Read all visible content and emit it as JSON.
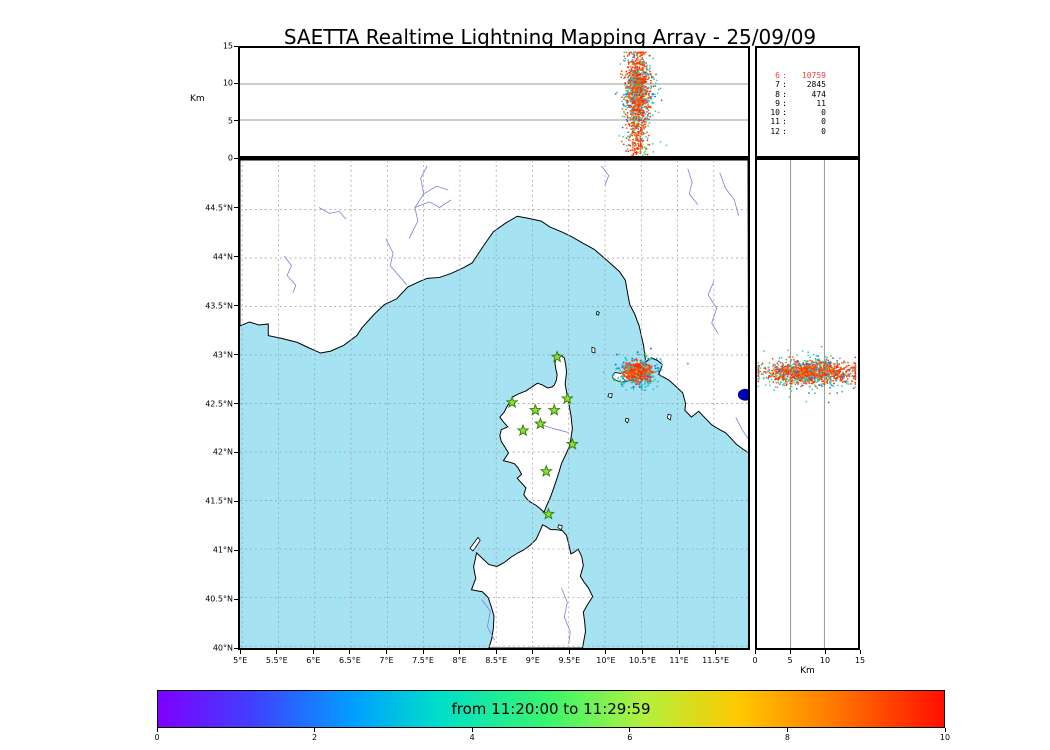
{
  "title": "SAETTA Realtime Lightning Mapping Array - 25/09/09",
  "chart_data": {
    "type": "scatter",
    "title": "SAETTA Realtime Lightning Mapping Array - 25/09/09",
    "panels": [
      {
        "id": "altitude-vs-longitude",
        "ylabel": "Km",
        "xlim": [
          4.97,
          11.97
        ],
        "ylim": [
          0,
          15
        ],
        "yticks": [
          0,
          5,
          10,
          15
        ],
        "ygrid": [
          5,
          10
        ]
      },
      {
        "id": "map",
        "xlim": [
          4.97,
          11.97
        ],
        "ylim": [
          39.98,
          45.01
        ],
        "xticks": [
          5,
          5.5,
          6,
          6.5,
          7,
          7.5,
          8,
          8.5,
          9,
          9.5,
          10,
          10.5,
          11,
          11.5
        ],
        "xtick_labels": [
          "5°E",
          "5.5°E",
          "6°E",
          "6.5°E",
          "7°E",
          "7.5°E",
          "8°E",
          "8.5°E",
          "9°E",
          "9.5°E",
          "10°E",
          "10.5°E",
          "11°E",
          "11.5°E"
        ],
        "yticks": [
          40,
          40.5,
          41,
          41.5,
          42,
          42.5,
          43,
          43.5,
          44,
          44.5
        ],
        "ytick_labels": [
          "40°N",
          "40.5°N",
          "41°N",
          "41.5°N",
          "42°N",
          "42.5°N",
          "43°N",
          "43.5°N",
          "44°N",
          "44.5°N"
        ],
        "grid_style": "dashed"
      },
      {
        "id": "altitude-vs-latitude",
        "xlabel": "Km",
        "xlim": [
          0,
          15
        ],
        "ylim": [
          39.98,
          45.01
        ],
        "xticks": [
          0,
          5,
          10,
          15
        ],
        "xgrid": [
          5,
          10
        ]
      }
    ],
    "stations": [
      [
        9.34,
        42.98
      ],
      [
        8.72,
        42.51
      ],
      [
        9.04,
        42.43
      ],
      [
        9.3,
        42.43
      ],
      [
        9.48,
        42.55
      ],
      [
        8.87,
        42.22
      ],
      [
        9.11,
        42.29
      ],
      [
        9.55,
        42.08
      ],
      [
        9.19,
        41.8
      ],
      [
        9.22,
        41.36
      ]
    ],
    "clusters": {
      "palette": [
        {
          "c": "#ff2d00",
          "w": 0.3
        },
        {
          "c": "#ff4f00",
          "w": 0.22
        },
        {
          "c": "#ff7518",
          "w": 0.14
        },
        {
          "c": "#2fd3c4",
          "w": 0.16
        },
        {
          "c": "#1fb9d8",
          "w": 0.06
        },
        {
          "c": "#47d24f",
          "w": 0.05
        },
        {
          "c": "#3566e8",
          "w": 0.07
        }
      ],
      "cool_from": 3,
      "map": {
        "lon": 10.45,
        "lat": 42.82,
        "slon": 0.085,
        "slat": 0.045,
        "n": 800,
        "cool_spread": 1.9,
        "seed": 42
      },
      "alt_lon": {
        "lon": 10.45,
        "slon": 0.075,
        "alt_mean": 9.2,
        "alt_sigma": 2.6,
        "alt_min": 0.1,
        "alt_max": 14.4,
        "tail_frac": 0.15,
        "n": 1400,
        "cool_spread": 1.5,
        "seed": 7
      },
      "alt_lat": {
        "lat": 42.82,
        "slat": 0.055,
        "alt_mean": 8.0,
        "alt_sigma": 3.4,
        "alt_min": 0.2,
        "alt_max": 14.6,
        "n": 1400,
        "cool_spread": 1.5,
        "seed": 13
      }
    },
    "source_counts": {
      "rows": [
        {
          "k": "6",
          "v": "10759",
          "red": true
        },
        {
          "k": "7",
          "v": "2845",
          "red": false
        },
        {
          "k": "8",
          "v": "474",
          "red": false
        },
        {
          "k": "9",
          "v": "11",
          "red": false
        },
        {
          "k": "10",
          "v": "0",
          "red": false
        },
        {
          "k": "11",
          "v": "0",
          "red": false
        },
        {
          "k": "12",
          "v": "0",
          "red": false
        }
      ]
    },
    "colorbar": {
      "label": "from 11:20:00 to 11:29:59",
      "range": [
        0,
        10
      ],
      "ticks": [
        0,
        2,
        4,
        6,
        8,
        10
      ],
      "stops": [
        {
          "c": "#8000ff",
          "p": 0
        },
        {
          "c": "#4040ff",
          "p": 12
        },
        {
          "c": "#00a0ff",
          "p": 25
        },
        {
          "c": "#00e0c8",
          "p": 36
        },
        {
          "c": "#3cf56c",
          "p": 50
        },
        {
          "c": "#b4f03c",
          "p": 62
        },
        {
          "c": "#ffc800",
          "p": 74
        },
        {
          "c": "#ff7800",
          "p": 86
        },
        {
          "c": "#ff0f00",
          "p": 100
        }
      ]
    }
  },
  "colors": {
    "sea": "#a6e3f2",
    "land": "#ffffff",
    "coast": "#000000",
    "river": "#7d7de0",
    "lake": "#0000b0",
    "grid": "#999999",
    "panel_grid": "#777777",
    "station_fill": "#8be32c",
    "station_edge": "#3a7d12",
    "stats_highlight": "#f43b3b"
  },
  "map_geo": {
    "mainland": [
      [
        4.97,
        43.3
      ],
      [
        5.1,
        43.34
      ],
      [
        5.23,
        43.31
      ],
      [
        5.36,
        43.32
      ],
      [
        5.36,
        43.2
      ],
      [
        5.55,
        43.17
      ],
      [
        5.76,
        43.13
      ],
      [
        5.93,
        43.07
      ],
      [
        6.08,
        43.02
      ],
      [
        6.22,
        43.04
      ],
      [
        6.4,
        43.1
      ],
      [
        6.58,
        43.2
      ],
      [
        6.65,
        43.28
      ],
      [
        6.82,
        43.42
      ],
      [
        6.96,
        43.52
      ],
      [
        7.13,
        43.58
      ],
      [
        7.28,
        43.7
      ],
      [
        7.45,
        43.76
      ],
      [
        7.55,
        43.79
      ],
      [
        7.72,
        43.8
      ],
      [
        7.88,
        43.84
      ],
      [
        8.05,
        43.9
      ],
      [
        8.17,
        43.95
      ],
      [
        8.32,
        44.12
      ],
      [
        8.46,
        44.27
      ],
      [
        8.63,
        44.36
      ],
      [
        8.79,
        44.43
      ],
      [
        8.94,
        44.41
      ],
      [
        9.12,
        44.38
      ],
      [
        9.24,
        44.32
      ],
      [
        9.4,
        44.27
      ],
      [
        9.54,
        44.22
      ],
      [
        9.7,
        44.15
      ],
      [
        9.85,
        44.09
      ],
      [
        10.05,
        43.96
      ],
      [
        10.2,
        43.86
      ],
      [
        10.28,
        43.77
      ],
      [
        10.31,
        43.64
      ],
      [
        10.34,
        43.52
      ],
      [
        10.41,
        43.42
      ],
      [
        10.47,
        43.3
      ],
      [
        10.53,
        43.1
      ],
      [
        10.56,
        42.93
      ],
      [
        10.64,
        42.97
      ],
      [
        10.73,
        42.94
      ],
      [
        10.79,
        42.9
      ],
      [
        10.74,
        42.8
      ],
      [
        10.88,
        42.74
      ],
      [
        10.97,
        42.68
      ],
      [
        11.07,
        42.61
      ],
      [
        11.11,
        42.5
      ],
      [
        11.1,
        42.43
      ],
      [
        11.19,
        42.36
      ],
      [
        11.29,
        42.42
      ],
      [
        11.38,
        42.35
      ],
      [
        11.47,
        42.28
      ],
      [
        11.58,
        42.23
      ],
      [
        11.66,
        42.2
      ],
      [
        11.75,
        42.13
      ],
      [
        11.81,
        42.08
      ],
      [
        11.9,
        42.03
      ],
      [
        11.98,
        41.99
      ]
    ],
    "corsica": [
      [
        9.35,
        43.01
      ],
      [
        9.4,
        42.99
      ],
      [
        9.44,
        42.97
      ],
      [
        9.46,
        42.89
      ],
      [
        9.47,
        42.82
      ],
      [
        9.45,
        42.7
      ],
      [
        9.47,
        42.62
      ],
      [
        9.49,
        42.54
      ],
      [
        9.53,
        42.38
      ],
      [
        9.55,
        42.24
      ],
      [
        9.53,
        42.14
      ],
      [
        9.51,
        42.06
      ],
      [
        9.45,
        41.96
      ],
      [
        9.4,
        41.88
      ],
      [
        9.36,
        41.78
      ],
      [
        9.33,
        41.71
      ],
      [
        9.28,
        41.6
      ],
      [
        9.24,
        41.52
      ],
      [
        9.19,
        41.44
      ],
      [
        9.16,
        41.38
      ],
      [
        9.1,
        41.42
      ],
      [
        9.05,
        41.45
      ],
      [
        8.98,
        41.48
      ],
      [
        8.93,
        41.51
      ],
      [
        8.88,
        41.56
      ],
      [
        8.91,
        41.63
      ],
      [
        8.85,
        41.68
      ],
      [
        8.79,
        41.73
      ],
      [
        8.85,
        41.77
      ],
      [
        8.8,
        41.84
      ],
      [
        8.75,
        41.88
      ],
      [
        8.66,
        41.9
      ],
      [
        8.6,
        41.91
      ],
      [
        8.67,
        41.99
      ],
      [
        8.62,
        42.05
      ],
      [
        8.57,
        42.11
      ],
      [
        8.55,
        42.17
      ],
      [
        8.57,
        42.23
      ],
      [
        8.66,
        42.26
      ],
      [
        8.6,
        42.31
      ],
      [
        8.55,
        42.36
      ],
      [
        8.61,
        42.41
      ],
      [
        8.65,
        42.47
      ],
      [
        8.7,
        42.53
      ],
      [
        8.73,
        42.57
      ],
      [
        8.81,
        42.6
      ],
      [
        8.91,
        42.63
      ],
      [
        8.99,
        42.67
      ],
      [
        9.07,
        42.71
      ],
      [
        9.14,
        42.69
      ],
      [
        9.21,
        42.66
      ],
      [
        9.27,
        42.67
      ],
      [
        9.3,
        42.69
      ],
      [
        9.33,
        42.74
      ],
      [
        9.34,
        42.8
      ],
      [
        9.32,
        42.86
      ],
      [
        9.31,
        42.92
      ],
      [
        9.33,
        42.97
      ]
    ],
    "sardinia": [
      [
        8.4,
        39.98
      ],
      [
        8.44,
        40.08
      ],
      [
        8.46,
        40.18
      ],
      [
        8.47,
        40.31
      ],
      [
        8.43,
        40.41
      ],
      [
        8.39,
        40.5
      ],
      [
        8.31,
        40.56
      ],
      [
        8.23,
        40.57
      ],
      [
        8.16,
        40.58
      ],
      [
        8.19,
        40.64
      ],
      [
        8.22,
        40.7
      ],
      [
        8.2,
        40.76
      ],
      [
        8.19,
        40.82
      ],
      [
        8.21,
        40.89
      ],
      [
        8.23,
        40.96
      ],
      [
        8.3,
        40.91
      ],
      [
        8.4,
        40.84
      ],
      [
        8.51,
        40.82
      ],
      [
        8.61,
        40.86
      ],
      [
        8.71,
        40.92
      ],
      [
        8.8,
        40.96
      ],
      [
        8.88,
        40.99
      ],
      [
        8.97,
        41.04
      ],
      [
        9.05,
        41.1
      ],
      [
        9.1,
        41.18
      ],
      [
        9.14,
        41.25
      ],
      [
        9.19,
        41.23
      ],
      [
        9.25,
        41.2
      ],
      [
        9.32,
        41.2
      ],
      [
        9.41,
        41.19
      ],
      [
        9.47,
        41.14
      ],
      [
        9.5,
        41.05
      ],
      [
        9.53,
        40.95
      ],
      [
        9.58,
        40.97
      ],
      [
        9.63,
        41.0
      ],
      [
        9.68,
        40.92
      ],
      [
        9.7,
        40.83
      ],
      [
        9.66,
        40.72
      ],
      [
        9.71,
        40.66
      ],
      [
        9.77,
        40.6
      ],
      [
        9.83,
        40.51
      ],
      [
        9.76,
        40.43
      ],
      [
        9.7,
        40.35
      ],
      [
        9.72,
        40.25
      ],
      [
        9.73,
        40.15
      ],
      [
        9.69,
        39.98
      ]
    ],
    "islands": [
      [
        [
          10.1,
          42.79
        ],
        [
          10.14,
          42.82
        ],
        [
          10.21,
          42.81
        ],
        [
          10.27,
          42.83
        ],
        [
          10.34,
          42.85
        ],
        [
          10.41,
          42.82
        ],
        [
          10.43,
          42.78
        ],
        [
          10.38,
          42.74
        ],
        [
          10.3,
          42.73
        ],
        [
          10.22,
          42.72
        ],
        [
          10.15,
          42.74
        ],
        [
          10.11,
          42.76
        ]
      ],
      [
        [
          9.82,
          43.08
        ],
        [
          9.86,
          43.07
        ],
        [
          9.86,
          43.02
        ],
        [
          9.82,
          43.03
        ]
      ],
      [
        [
          9.89,
          43.45
        ],
        [
          9.92,
          43.44
        ],
        [
          9.91,
          43.41
        ],
        [
          9.88,
          43.42
        ]
      ],
      [
        [
          10.05,
          42.6
        ],
        [
          10.1,
          42.6
        ],
        [
          10.09,
          42.56
        ],
        [
          10.04,
          42.57
        ]
      ],
      [
        [
          10.29,
          42.35
        ],
        [
          10.33,
          42.34
        ],
        [
          10.31,
          42.3
        ],
        [
          10.28,
          42.32
        ]
      ],
      [
        [
          10.87,
          42.39
        ],
        [
          10.91,
          42.38
        ],
        [
          10.9,
          42.33
        ],
        [
          10.86,
          42.35
        ]
      ],
      [
        [
          8.18,
          40.98
        ],
        [
          8.22,
          41.02
        ],
        [
          8.28,
          41.09
        ],
        [
          8.25,
          41.12
        ],
        [
          8.19,
          41.06
        ],
        [
          8.14,
          41.01
        ]
      ],
      [
        [
          9.36,
          41.25
        ],
        [
          9.41,
          41.24
        ],
        [
          9.4,
          41.2
        ],
        [
          9.35,
          41.22
        ]
      ]
    ],
    "rivers": [
      [
        [
          5.58,
          44.02
        ],
        [
          5.68,
          43.92
        ],
        [
          5.62,
          43.82
        ],
        [
          5.74,
          43.72
        ],
        [
          5.7,
          43.64
        ]
      ],
      [
        [
          6.06,
          44.52
        ],
        [
          6.2,
          44.46
        ],
        [
          6.34,
          44.48
        ],
        [
          6.43,
          44.4
        ]
      ],
      [
        [
          7.3,
          44.2
        ],
        [
          7.42,
          44.38
        ],
        [
          7.38,
          44.52
        ],
        [
          7.5,
          44.66
        ],
        [
          7.46,
          44.82
        ],
        [
          7.55,
          44.95
        ]
      ],
      [
        [
          7.38,
          44.52
        ],
        [
          7.58,
          44.58
        ],
        [
          7.72,
          44.52
        ],
        [
          7.88,
          44.6
        ]
      ],
      [
        [
          7.5,
          44.66
        ],
        [
          7.68,
          44.74
        ],
        [
          7.84,
          44.7
        ]
      ],
      [
        [
          6.98,
          44.2
        ],
        [
          7.08,
          44.05
        ],
        [
          7.04,
          43.92
        ],
        [
          7.18,
          43.8
        ],
        [
          7.27,
          43.72
        ]
      ],
      [
        [
          9.95,
          44.95
        ],
        [
          10.05,
          44.85
        ],
        [
          10.0,
          44.75
        ]
      ],
      [
        [
          11.14,
          44.92
        ],
        [
          11.2,
          44.78
        ],
        [
          11.16,
          44.66
        ],
        [
          11.28,
          44.55
        ]
      ],
      [
        [
          11.58,
          44.88
        ],
        [
          11.66,
          44.72
        ],
        [
          11.78,
          44.6
        ],
        [
          11.84,
          44.44
        ]
      ],
      [
        [
          11.5,
          43.76
        ],
        [
          11.42,
          43.62
        ],
        [
          11.54,
          43.48
        ],
        [
          11.47,
          43.33
        ],
        [
          11.56,
          43.22
        ]
      ],
      [
        [
          11.8,
          42.36
        ],
        [
          11.88,
          42.24
        ],
        [
          11.97,
          42.14
        ]
      ],
      [
        [
          9.13,
          42.28
        ],
        [
          9.25,
          42.25
        ],
        [
          9.4,
          42.22
        ],
        [
          9.5,
          42.2
        ]
      ],
      [
        [
          9.4,
          40.6
        ],
        [
          9.48,
          40.45
        ],
        [
          9.44,
          40.3
        ],
        [
          9.52,
          40.15
        ],
        [
          9.5,
          40.02
        ]
      ],
      [
        [
          8.3,
          40.48
        ],
        [
          8.42,
          40.36
        ],
        [
          8.38,
          40.2
        ],
        [
          8.48,
          40.06
        ]
      ]
    ],
    "lake": {
      "lon": 11.93,
      "lat": 42.59,
      "rlon": 0.1,
      "rlat": 0.06
    }
  }
}
